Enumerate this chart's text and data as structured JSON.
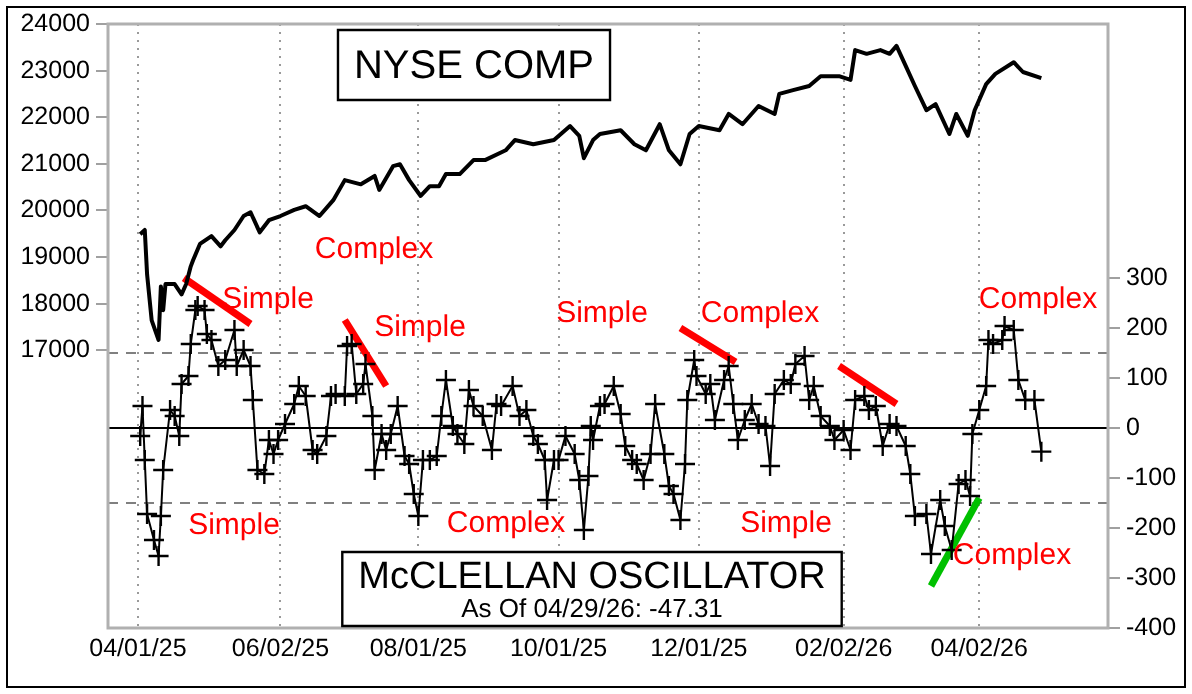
{
  "chart_data": {
    "type": "line",
    "grid": "x",
    "legend": false,
    "xlim": [
      "2025-03-19",
      "2026-05-28"
    ],
    "xticks": [
      {
        "value": "2025-04-01",
        "label": "04/01/25"
      },
      {
        "value": "2025-06-02",
        "label": "06/02/25"
      },
      {
        "value": "2025-08-01",
        "label": "08/01/25"
      },
      {
        "value": "2025-10-01",
        "label": "10/01/25"
      },
      {
        "value": "2025-12-01",
        "label": "12/01/25"
      },
      {
        "value": "2026-02-02",
        "label": "02/02/26"
      },
      {
        "value": "2026-04-02",
        "label": "04/02/26"
      }
    ],
    "ylim": [
      11040,
      24000
    ],
    "yticks": [
      17000,
      18000,
      19000,
      20000,
      21000,
      22000,
      23000,
      24000
    ],
    "y2lim": [
      -400,
      808
    ],
    "y2ticks": [
      -400,
      -300,
      -200,
      -100,
      0,
      100,
      200,
      300
    ],
    "ref_lines": [
      {
        "axis": "y2",
        "value": 150,
        "color": "#808080",
        "line_style": "dashed"
      },
      {
        "axis": "y2",
        "value": -150,
        "color": "#808080",
        "line_style": "dashed"
      },
      {
        "axis": "y2",
        "value": 0,
        "color": "#000000",
        "line_style": "solid"
      }
    ],
    "annotations": [
      "As Of 04/29/26: -47.31",
      "Simple",
      "Complex",
      "Simple",
      "Simple",
      "Complex",
      "Complex",
      "Simple",
      "Complex",
      "Simple",
      "Complex"
    ],
    "series": [
      {
        "name": "NYSE COMP",
        "color": "#000000",
        "marker": "none",
        "x": [
          "2025-04-02",
          "2025-04-04",
          "2025-04-05",
          "2025-04-07",
          "2025-04-10",
          "2025-04-11",
          "2025-04-12",
          "2025-04-13",
          "2025-04-17",
          "2025-04-20",
          "2025-04-22",
          "2025-04-24",
          "2025-04-25",
          "2025-04-28",
          "2025-05-03",
          "2025-05-07",
          "2025-05-09",
          "2025-05-13",
          "2025-05-17",
          "2025-05-20",
          "2025-05-24",
          "2025-05-28",
          "2025-06-02",
          "2025-06-08",
          "2025-06-13",
          "2025-06-19",
          "2025-06-25",
          "2025-06-30",
          "2025-07-07",
          "2025-07-13",
          "2025-07-15",
          "2025-07-21",
          "2025-07-24",
          "2025-07-28",
          "2025-08-02",
          "2025-08-06",
          "2025-08-10",
          "2025-08-13",
          "2025-08-19",
          "2025-08-25",
          "2025-08-30",
          "2025-09-08",
          "2025-09-12",
          "2025-09-20",
          "2025-09-29",
          "2025-10-06",
          "2025-10-10",
          "2025-10-12",
          "2025-10-16",
          "2025-10-19",
          "2025-10-28",
          "2025-11-03",
          "2025-11-08",
          "2025-11-14",
          "2025-11-18",
          "2025-11-23",
          "2025-11-27",
          "2025-12-01",
          "2025-12-10",
          "2025-12-14",
          "2025-12-20",
          "2025-12-27",
          "2026-01-03",
          "2026-01-05",
          "2026-01-11",
          "2026-01-18",
          "2026-01-23",
          "2026-01-31",
          "2026-02-05",
          "2026-02-07",
          "2026-02-12",
          "2026-02-18",
          "2026-02-22",
          "2026-02-25",
          "2026-03-01",
          "2026-03-05",
          "2026-03-10",
          "2026-03-14",
          "2026-03-20",
          "2026-03-23",
          "2026-03-28",
          "2026-03-31",
          "2026-04-05",
          "2026-04-09",
          "2026-04-17",
          "2026-04-21",
          "2026-04-29"
        ],
        "values": [
          19490,
          19580,
          18630,
          17640,
          17220,
          18370,
          17860,
          18420,
          18420,
          18200,
          18420,
          18800,
          18930,
          19280,
          19450,
          19230,
          19360,
          19580,
          19880,
          19960,
          19530,
          19790,
          19880,
          20010,
          20090,
          19880,
          20220,
          20650,
          20560,
          20740,
          20440,
          20950,
          20990,
          20650,
          20310,
          20520,
          20520,
          20780,
          20780,
          21080,
          21080,
          21290,
          21510,
          21420,
          21510,
          21810,
          21600,
          21120,
          21510,
          21640,
          21720,
          21420,
          21290,
          21850,
          21290,
          20990,
          21640,
          21810,
          21720,
          22070,
          21850,
          22240,
          22070,
          22500,
          22580,
          22670,
          22880,
          22880,
          22800,
          23440,
          23360,
          23440,
          23360,
          23530,
          23100,
          22670,
          22150,
          22280,
          21640,
          22070,
          21600,
          22150,
          22710,
          22930,
          23180,
          22970,
          22840
        ]
      },
      {
        "name": "McCLELLAN OSCILLATOR",
        "color": "#000000",
        "axis": "y2",
        "marker": "cross",
        "x": [
          "2025-04-02",
          "2025-04-03",
          "2025-04-04",
          "2025-04-05",
          "2025-04-08",
          "2025-04-10",
          "2025-04-11",
          "2025-04-12",
          "2025-04-15",
          "2025-04-17",
          "2025-04-19",
          "2025-04-20",
          "2025-04-23",
          "2025-04-24",
          "2025-04-26",
          "2025-04-27",
          "2025-04-30",
          "2025-05-01",
          "2025-05-03",
          "2025-05-06",
          "2025-05-09",
          "2025-05-13",
          "2025-05-14",
          "2025-05-17",
          "2025-05-20",
          "2025-05-21",
          "2025-05-23",
          "2025-05-26",
          "2025-05-28",
          "2025-05-30",
          "2025-06-01",
          "2025-06-04",
          "2025-06-08",
          "2025-06-10",
          "2025-06-13",
          "2025-06-16",
          "2025-06-18",
          "2025-06-22",
          "2025-06-24",
          "2025-06-26",
          "2025-06-30",
          "2025-07-01",
          "2025-07-03",
          "2025-07-05",
          "2025-07-08",
          "2025-07-09",
          "2025-07-12",
          "2025-07-13",
          "2025-07-16",
          "2025-07-18",
          "2025-07-20",
          "2025-07-23",
          "2025-07-26",
          "2025-07-28",
          "2025-07-30",
          "2025-08-01",
          "2025-08-03",
          "2025-08-06",
          "2025-08-09",
          "2025-08-11",
          "2025-08-13",
          "2025-08-16",
          "2025-08-18",
          "2025-08-21",
          "2025-08-23",
          "2025-08-25",
          "2025-08-29",
          "2025-09-02",
          "2025-09-04",
          "2025-09-06",
          "2025-09-11",
          "2025-09-14",
          "2025-09-17",
          "2025-09-20",
          "2025-09-22",
          "2025-09-25",
          "2025-09-26",
          "2025-09-29",
          "2025-10-01",
          "2025-10-04",
          "2025-10-08",
          "2025-10-10",
          "2025-10-12",
          "2025-10-14",
          "2025-10-15",
          "2025-10-16",
          "2025-10-19",
          "2025-10-21",
          "2025-10-25",
          "2025-10-28",
          "2025-10-30",
          "2025-11-02",
          "2025-11-04",
          "2025-11-07",
          "2025-11-10",
          "2025-11-12",
          "2025-11-16",
          "2025-11-18",
          "2025-11-20",
          "2025-11-23",
          "2025-11-25",
          "2025-11-26",
          "2025-11-29",
          "2025-11-30",
          "2025-12-04",
          "2025-12-06",
          "2025-12-08",
          "2025-12-12",
          "2025-12-14",
          "2025-12-16",
          "2025-12-18",
          "2025-12-21",
          "2025-12-24",
          "2025-12-27",
          "2025-12-30",
          "2026-01-01",
          "2026-01-03",
          "2026-01-07",
          "2026-01-10",
          "2026-01-12",
          "2026-01-16",
          "2026-01-18",
          "2026-01-20",
          "2026-01-23",
          "2026-01-27",
          "2026-01-29",
          "2026-02-02",
          "2026-02-05",
          "2026-02-07",
          "2026-02-11",
          "2026-02-13",
          "2026-02-16",
          "2026-02-19",
          "2026-02-22",
          "2026-02-25",
          "2026-03-01",
          "2026-03-03",
          "2026-03-05",
          "2026-03-10",
          "2026-03-12",
          "2026-03-16",
          "2026-03-18",
          "2026-03-21",
          "2026-03-24",
          "2026-03-27",
          "2026-03-29",
          "2026-03-30",
          "2026-04-02",
          "2026-04-05",
          "2026-04-06",
          "2026-04-08",
          "2026-04-12",
          "2026-04-13",
          "2026-04-17",
          "2026-04-19",
          "2026-04-22",
          "2026-04-26",
          "2026-04-29"
        ],
        "values": [
          -16,
          44,
          -64,
          -172,
          -224,
          -256,
          -176,
          -84,
          36,
          24,
          -16,
          88,
          104,
          168,
          236,
          244,
          236,
          188,
          176,
          124,
          136,
          196,
          124,
          156,
          124,
          56,
          -84,
          -92,
          -24,
          -52,
          -24,
          8,
          48,
          84,
          64,
          -44,
          -52,
          -16,
          64,
          68,
          64,
          164,
          168,
          68,
          88,
          128,
          24,
          -84,
          -12,
          -44,
          -12,
          44,
          -56,
          -72,
          -132,
          -176,
          -64,
          -64,
          -56,
          24,
          96,
          4,
          -12,
          -32,
          76,
          44,
          24,
          -44,
          48,
          44,
          84,
          24,
          36,
          -16,
          -32,
          -64,
          -144,
          -64,
          -64,
          -16,
          -52,
          -104,
          -204,
          -96,
          4,
          -24,
          44,
          48,
          84,
          28,
          -36,
          -64,
          -72,
          -104,
          -52,
          48,
          -52,
          -116,
          -132,
          -184,
          -72,
          56,
          136,
          104,
          68,
          88,
          16,
          96,
          124,
          48,
          -24,
          16,
          48,
          8,
          4,
          -76,
          68,
          96,
          88,
          128,
          144,
          56,
          84,
          24,
          4,
          -24,
          -4,
          -44,
          56,
          64,
          36,
          44,
          -36,
          8,
          4,
          -36,
          -92,
          -176,
          -172,
          -252,
          -144,
          -196,
          -244,
          -112,
          -104,
          -136,
          -12,
          36,
          84,
          176,
          168,
          176,
          204,
          196,
          96,
          56,
          56,
          -47.31
        ]
      },
      {
        "type": "line",
        "color": "#ff0000",
        "axis": "y2",
        "x": [
          "2025-04-21",
          "2025-05-20"
        ],
        "values": [
          300,
          208
        ]
      },
      {
        "type": "line",
        "color": "#ff0000",
        "axis": "y2",
        "x": [
          "2025-06-30",
          "2025-07-18"
        ],
        "values": [
          216,
          84
        ]
      },
      {
        "type": "line",
        "color": "#ff0000",
        "axis": "y2",
        "x": [
          "2025-11-23",
          "2025-12-17"
        ],
        "values": [
          200,
          132
        ]
      },
      {
        "type": "line",
        "color": "#ff0000",
        "axis": "y2",
        "x": [
          "2026-01-31",
          "2026-02-25"
        ],
        "values": [
          124,
          48
        ]
      },
      {
        "type": "line",
        "color": "#00c000",
        "axis": "y2",
        "x": [
          "2026-03-12",
          "2026-04-02"
        ],
        "values": [
          -316,
          -140
        ]
      }
    ]
  }
}
